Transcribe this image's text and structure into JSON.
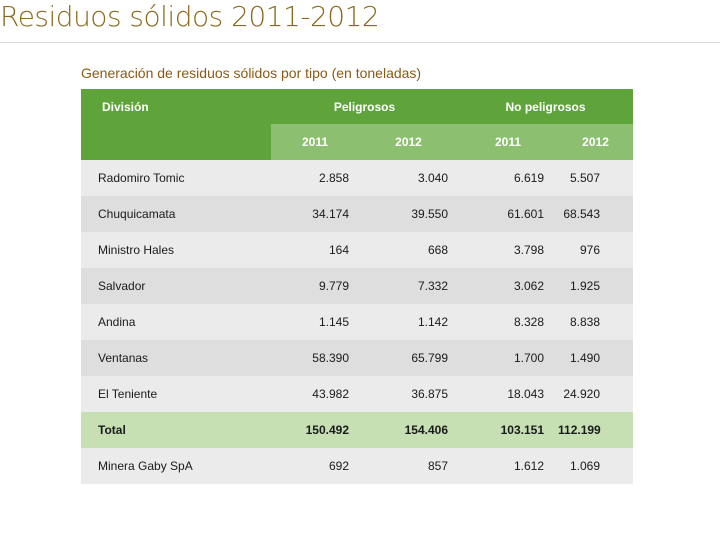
{
  "page": {
    "title": "Residuos sólidos 2011-2012",
    "caption": "Generación de residuos sólidos por tipo (en toneladas)"
  },
  "table": {
    "header": {
      "division": "División",
      "group_hazardous": "Peligrosos",
      "group_non_hazardous": "No peligrosos",
      "years": [
        "2011",
        "2012",
        "2011",
        "2012"
      ]
    },
    "rows": [
      {
        "name": "Radomiro Tomic",
        "values": [
          "2.858",
          "3.040",
          "6.619",
          "5.507"
        ]
      },
      {
        "name": "Chuquicamata",
        "values": [
          "34.174",
          "39.550",
          "61.601",
          "68.543"
        ]
      },
      {
        "name": "Ministro Hales",
        "values": [
          "164",
          "668",
          "3.798",
          "976"
        ]
      },
      {
        "name": "Salvador",
        "values": [
          "9.779",
          "7.332",
          "3.062",
          "1.925"
        ]
      },
      {
        "name": "Andina",
        "values": [
          "1.145",
          "1.142",
          "8.328",
          "8.838"
        ]
      },
      {
        "name": "Ventanas",
        "values": [
          "58.390",
          "65.799",
          "1.700",
          "1.490"
        ]
      },
      {
        "name": "El Teniente",
        "values": [
          "43.982",
          "36.875",
          "18.043",
          "24.920"
        ]
      },
      {
        "name": "Total",
        "values": [
          "150.492",
          "154.406",
          "103.151",
          "112.199"
        ]
      },
      {
        "name": "Minera Gaby SpA",
        "values": [
          "692",
          "857",
          "1.612",
          "1.069"
        ]
      }
    ]
  },
  "colors": {
    "title": "#8a6a1c",
    "header_dark": "#5ea43b",
    "header_light": "#8cc070",
    "total_row": "#c6e0b4"
  }
}
